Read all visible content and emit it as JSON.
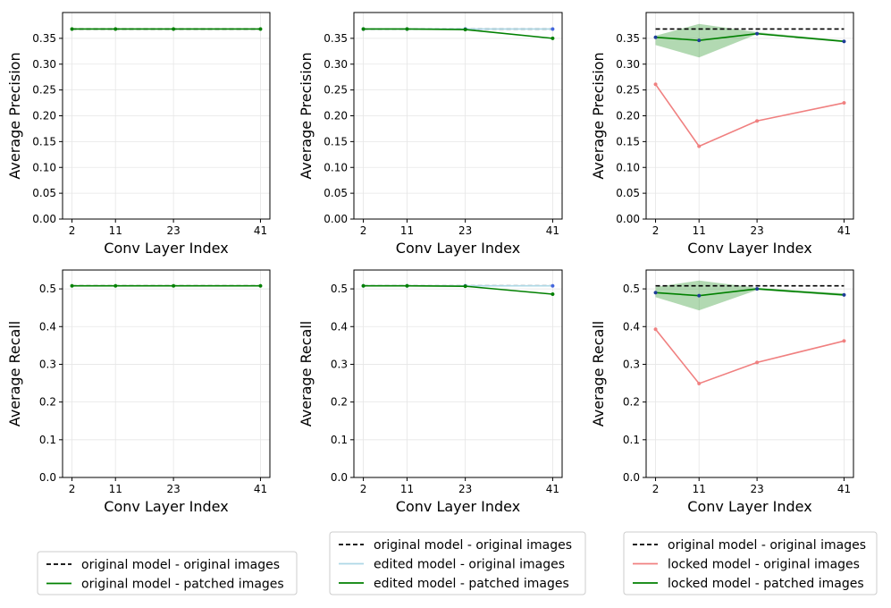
{
  "chart_data": [
    {
      "id": "p00",
      "type": "line",
      "x": [
        "2",
        "11",
        "23",
        "41"
      ],
      "xlabel": "Conv Layer Index",
      "ylabel": "Average Precision",
      "ylim": [
        0,
        0.4
      ],
      "yticks": [
        "0.00",
        "0.05",
        "0.10",
        "0.15",
        "0.20",
        "0.25",
        "0.30",
        "0.35"
      ],
      "grid": true,
      "series": [
        {
          "name": "original model - original images",
          "values": [
            0.368,
            0.368,
            0.368,
            0.368
          ],
          "color": "#000000",
          "style": "dashed"
        },
        {
          "name": "original model - patched images",
          "values": [
            0.368,
            0.368,
            0.368,
            0.368
          ],
          "color": "#008000",
          "style": "solid",
          "markers": true
        }
      ]
    },
    {
      "id": "p01",
      "type": "line",
      "x": [
        "2",
        "11",
        "23",
        "41"
      ],
      "xlabel": "Conv Layer Index",
      "ylabel": "Average Precision",
      "ylim": [
        0,
        0.4
      ],
      "yticks": [
        "0.00",
        "0.05",
        "0.10",
        "0.15",
        "0.20",
        "0.25",
        "0.30",
        "0.35"
      ],
      "grid": true,
      "series": [
        {
          "name": "original model - original images",
          "values": [
            0.368,
            0.368,
            0.368,
            0.368
          ],
          "color": "#000000",
          "style": "dashed"
        },
        {
          "name": "edited model - original images",
          "values": [
            0.368,
            0.368,
            0.368,
            0.368
          ],
          "color": "#add8e6",
          "style": "solid",
          "markers": true
        },
        {
          "name": "edited model - patched images",
          "values": [
            0.368,
            0.368,
            0.367,
            0.35
          ],
          "color": "#008000",
          "style": "solid",
          "markers": true
        }
      ]
    },
    {
      "id": "p02",
      "type": "line",
      "x": [
        "2",
        "11",
        "23",
        "41"
      ],
      "xlabel": "Conv Layer Index",
      "ylabel": "Average Precision",
      "ylim": [
        0,
        0.4
      ],
      "yticks": [
        "0.00",
        "0.05",
        "0.10",
        "0.15",
        "0.20",
        "0.25",
        "0.30",
        "0.35"
      ],
      "grid": true,
      "band": {
        "lower": [
          0.337,
          0.313,
          0.358,
          0.343
        ],
        "upper": [
          0.355,
          0.378,
          0.362,
          0.346
        ]
      },
      "series": [
        {
          "name": "original model - original images",
          "values": [
            0.368,
            0.368,
            0.368,
            0.368
          ],
          "color": "#000000",
          "style": "dashed"
        },
        {
          "name": "locked model - original images",
          "values": [
            0.261,
            0.141,
            0.19,
            0.225
          ],
          "color": "#f08080",
          "style": "solid",
          "markers": true
        },
        {
          "name": "locked model - patched images",
          "values": [
            0.352,
            0.346,
            0.359,
            0.344
          ],
          "color": "#008000",
          "style": "solid",
          "markers": true
        }
      ]
    },
    {
      "id": "p10",
      "type": "line",
      "x": [
        "2",
        "11",
        "23",
        "41"
      ],
      "xlabel": "Conv Layer Index",
      "ylabel": "Average Recall",
      "ylim": [
        0,
        0.55
      ],
      "yticks": [
        "0.0",
        "0.1",
        "0.2",
        "0.3",
        "0.4",
        "0.5"
      ],
      "grid": true,
      "series": [
        {
          "name": "original model - original images",
          "values": [
            0.508,
            0.508,
            0.508,
            0.508
          ],
          "color": "#000000",
          "style": "dashed"
        },
        {
          "name": "original model - patched images",
          "values": [
            0.508,
            0.508,
            0.508,
            0.508
          ],
          "color": "#008000",
          "style": "solid",
          "markers": true
        }
      ]
    },
    {
      "id": "p11",
      "type": "line",
      "x": [
        "2",
        "11",
        "23",
        "41"
      ],
      "xlabel": "Conv Layer Index",
      "ylabel": "Average Recall",
      "ylim": [
        0,
        0.55
      ],
      "yticks": [
        "0.0",
        "0.1",
        "0.2",
        "0.3",
        "0.4",
        "0.5"
      ],
      "grid": true,
      "series": [
        {
          "name": "original model - original images",
          "values": [
            0.508,
            0.508,
            0.508,
            0.508
          ],
          "color": "#000000",
          "style": "dashed"
        },
        {
          "name": "edited model - original images",
          "values": [
            0.508,
            0.508,
            0.508,
            0.508
          ],
          "color": "#add8e6",
          "style": "solid",
          "markers": true
        },
        {
          "name": "edited model - patched images",
          "values": [
            0.508,
            0.508,
            0.507,
            0.486
          ],
          "color": "#008000",
          "style": "solid",
          "markers": true
        }
      ]
    },
    {
      "id": "p12",
      "type": "line",
      "x": [
        "2",
        "11",
        "23",
        "41"
      ],
      "xlabel": "Conv Layer Index",
      "ylabel": "Average Recall",
      "ylim": [
        0,
        0.55
      ],
      "yticks": [
        "0.0",
        "0.1",
        "0.2",
        "0.3",
        "0.4",
        "0.5"
      ],
      "grid": true,
      "band": {
        "lower": [
          0.478,
          0.443,
          0.497,
          0.481
        ],
        "upper": [
          0.505,
          0.522,
          0.503,
          0.488
        ]
      },
      "series": [
        {
          "name": "original model - original images",
          "values": [
            0.508,
            0.508,
            0.508,
            0.508
          ],
          "color": "#000000",
          "style": "dashed"
        },
        {
          "name": "locked model - original images",
          "values": [
            0.393,
            0.249,
            0.305,
            0.362
          ],
          "color": "#f08080",
          "style": "solid",
          "markers": true
        },
        {
          "name": "locked model - patched images",
          "values": [
            0.49,
            0.482,
            0.5,
            0.484
          ],
          "color": "#008000",
          "style": "solid",
          "markers": true
        }
      ]
    }
  ],
  "legends": [
    {
      "entries": [
        {
          "label": "original model - original images",
          "color": "#000000",
          "style": "dashed"
        },
        {
          "label": "original model - patched images",
          "color": "#008000",
          "style": "solid"
        }
      ]
    },
    {
      "entries": [
        {
          "label": "original model - original images",
          "color": "#000000",
          "style": "dashed"
        },
        {
          "label": "edited model - original images",
          "color": "#add8e6",
          "style": "solid"
        },
        {
          "label": "edited model - patched images",
          "color": "#008000",
          "style": "solid"
        }
      ]
    },
    {
      "entries": [
        {
          "label": "original model - original images",
          "color": "#000000",
          "style": "dashed"
        },
        {
          "label": "locked model - original images",
          "color": "#f08080",
          "style": "solid"
        },
        {
          "label": "locked model - patched images",
          "color": "#008000",
          "style": "solid"
        }
      ]
    }
  ]
}
